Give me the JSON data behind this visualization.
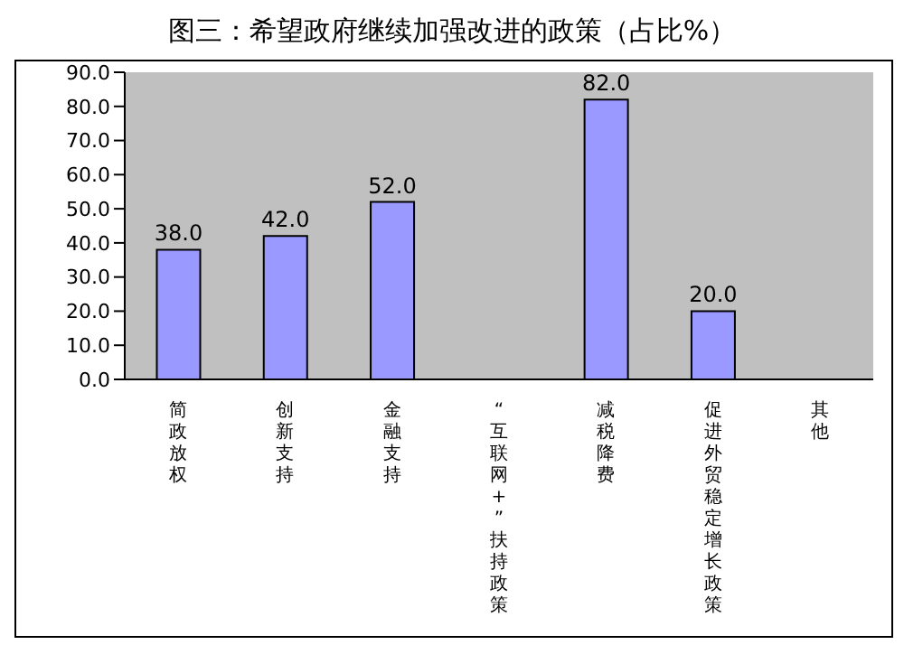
{
  "chart_data": {
    "type": "bar",
    "title": "图三：希望政府继续加强改进的政策（占比%）",
    "categories": [
      "简政放权",
      "创新支持",
      "金融支持",
      "“互联网+”扶持政策",
      "减税降费",
      "促进外贸稳定增长政策",
      "其他"
    ],
    "values": [
      38,
      42,
      52,
      null,
      82,
      20,
      null
    ],
    "value_labels": [
      "38.0",
      "42.0",
      "52.0",
      null,
      "82.0",
      "20.0",
      null
    ],
    "color": "#9999ff",
    "ylim": [
      0,
      90
    ],
    "yticks": [
      {
        "value": 0,
        "label": "0.0"
      },
      {
        "value": 10,
        "label": "10.0"
      },
      {
        "value": 20,
        "label": "20.0"
      },
      {
        "value": 30,
        "label": "30.0"
      },
      {
        "value": 40,
        "label": "40.0"
      },
      {
        "value": 50,
        "label": "50.0"
      },
      {
        "value": 60,
        "label": "60.0"
      },
      {
        "value": 70,
        "label": "70.0"
      },
      {
        "value": 80,
        "label": "80.0"
      },
      {
        "value": 90,
        "label": "90.0"
      }
    ],
    "grid": false
  }
}
